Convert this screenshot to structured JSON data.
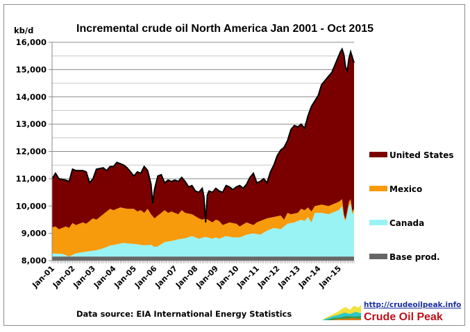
{
  "chart_data": {
    "type": "area",
    "stacked": true,
    "title": "Incremental crude oil North America  Jan 2001 - Oct 2015",
    "ylabel": "kb/d",
    "xlabel": "",
    "ylim": [
      8000,
      16000
    ],
    "yticks": [
      8000,
      9000,
      10000,
      11000,
      12000,
      13000,
      14000,
      15000,
      16000
    ],
    "ytick_labels": [
      "8,000",
      "9,000",
      "10,000",
      "11,000",
      "12,000",
      "13,000",
      "14,000",
      "15,000",
      "16,000"
    ],
    "x_start": "Jan 2001",
    "x_end": "Oct 2015",
    "xtick_labels": [
      "Jan-01",
      "Jan-02",
      "Jan-03",
      "Jan-04",
      "Jan-05",
      "Jan-06",
      "Jan-07",
      "Jan-08",
      "Jan-09",
      "Jan-10",
      "Jan-11",
      "Jan-12",
      "Jan-13",
      "Jan-14",
      "Jan-15"
    ],
    "grid": "horizontal",
    "legend_position": "right",
    "series_note": "values are cumulative stack tops in kb/d, one per month",
    "series": [
      {
        "name": "Base prod.",
        "color": "#666666",
        "keypoints": [
          [
            0,
            8150
          ],
          [
            177,
            8150
          ]
        ]
      },
      {
        "name": "Canada",
        "color": "#99f3f5",
        "keypoints": [
          [
            0,
            8260
          ],
          [
            6,
            8250
          ],
          [
            10,
            8150
          ],
          [
            14,
            8270
          ],
          [
            20,
            8330
          ],
          [
            26,
            8380
          ],
          [
            30,
            8450
          ],
          [
            34,
            8550
          ],
          [
            38,
            8600
          ],
          [
            42,
            8650
          ],
          [
            46,
            8620
          ],
          [
            50,
            8600
          ],
          [
            54,
            8560
          ],
          [
            58,
            8580
          ],
          [
            60,
            8500
          ],
          [
            62,
            8520
          ],
          [
            66,
            8680
          ],
          [
            70,
            8720
          ],
          [
            74,
            8780
          ],
          [
            78,
            8820
          ],
          [
            82,
            8900
          ],
          [
            86,
            8800
          ],
          [
            90,
            8870
          ],
          [
            94,
            8800
          ],
          [
            96,
            8850
          ],
          [
            98,
            8800
          ],
          [
            102,
            8900
          ],
          [
            106,
            8850
          ],
          [
            110,
            8850
          ],
          [
            114,
            8950
          ],
          [
            118,
            9000
          ],
          [
            122,
            8950
          ],
          [
            126,
            9100
          ],
          [
            130,
            9200
          ],
          [
            134,
            9150
          ],
          [
            138,
            9350
          ],
          [
            142,
            9400
          ],
          [
            146,
            9500
          ],
          [
            148,
            9450
          ],
          [
            150,
            9600
          ],
          [
            152,
            9400
          ],
          [
            154,
            9750
          ],
          [
            158,
            9750
          ],
          [
            162,
            9700
          ],
          [
            166,
            9800
          ],
          [
            168,
            9850
          ],
          [
            170,
            10000
          ],
          [
            171,
            9600
          ],
          [
            172,
            9450
          ],
          [
            174,
            10000
          ],
          [
            175,
            10100
          ],
          [
            176,
            9700
          ],
          [
            177,
            9800
          ]
        ]
      },
      {
        "name": "Mexico",
        "color": "#f79a0c",
        "keypoints": [
          [
            0,
            9220
          ],
          [
            2,
            9250
          ],
          [
            4,
            9150
          ],
          [
            8,
            9250
          ],
          [
            10,
            9200
          ],
          [
            12,
            9380
          ],
          [
            14,
            9300
          ],
          [
            18,
            9400
          ],
          [
            20,
            9350
          ],
          [
            24,
            9550
          ],
          [
            26,
            9500
          ],
          [
            30,
            9700
          ],
          [
            34,
            9900
          ],
          [
            36,
            9850
          ],
          [
            40,
            9950
          ],
          [
            44,
            9900
          ],
          [
            48,
            9900
          ],
          [
            50,
            9800
          ],
          [
            52,
            9850
          ],
          [
            54,
            9750
          ],
          [
            56,
            9900
          ],
          [
            58,
            9700
          ],
          [
            60,
            9550
          ],
          [
            62,
            9650
          ],
          [
            66,
            9850
          ],
          [
            68,
            9750
          ],
          [
            70,
            9800
          ],
          [
            74,
            9700
          ],
          [
            76,
            9850
          ],
          [
            78,
            9750
          ],
          [
            82,
            9700
          ],
          [
            86,
            9550
          ],
          [
            88,
            9500
          ],
          [
            90,
            9550
          ],
          [
            94,
            9400
          ],
          [
            96,
            9500
          ],
          [
            98,
            9450
          ],
          [
            100,
            9300
          ],
          [
            104,
            9400
          ],
          [
            108,
            9350
          ],
          [
            110,
            9250
          ],
          [
            114,
            9400
          ],
          [
            118,
            9300
          ],
          [
            120,
            9400
          ],
          [
            124,
            9500
          ],
          [
            126,
            9550
          ],
          [
            130,
            9600
          ],
          [
            134,
            9650
          ],
          [
            136,
            9500
          ],
          [
            138,
            9750
          ],
          [
            140,
            9700
          ],
          [
            144,
            9750
          ],
          [
            146,
            9900
          ],
          [
            148,
            9850
          ],
          [
            150,
            9950
          ],
          [
            152,
            9800
          ],
          [
            154,
            10000
          ],
          [
            158,
            10050
          ],
          [
            162,
            10000
          ],
          [
            166,
            10100
          ],
          [
            168,
            10150
          ],
          [
            170,
            10250
          ],
          [
            171,
            9700
          ],
          [
            172,
            9500
          ],
          [
            174,
            10150
          ],
          [
            175,
            10250
          ],
          [
            176,
            9800
          ],
          [
            177,
            9900
          ]
        ]
      },
      {
        "name": "United States",
        "color": "#7a0000",
        "keypoints": [
          [
            0,
            11000
          ],
          [
            2,
            11200
          ],
          [
            4,
            11000
          ],
          [
            8,
            10950
          ],
          [
            10,
            10900
          ],
          [
            12,
            11350
          ],
          [
            14,
            11300
          ],
          [
            18,
            11300
          ],
          [
            20,
            11250
          ],
          [
            22,
            10850
          ],
          [
            24,
            11000
          ],
          [
            26,
            11350
          ],
          [
            30,
            11400
          ],
          [
            32,
            11300
          ],
          [
            34,
            11450
          ],
          [
            36,
            11450
          ],
          [
            38,
            11600
          ],
          [
            40,
            11550
          ],
          [
            42,
            11500
          ],
          [
            44,
            11400
          ],
          [
            46,
            11250
          ],
          [
            48,
            11100
          ],
          [
            50,
            11250
          ],
          [
            52,
            11200
          ],
          [
            54,
            11450
          ],
          [
            56,
            11300
          ],
          [
            58,
            10800
          ],
          [
            59,
            10100
          ],
          [
            60,
            10600
          ],
          [
            62,
            11100
          ],
          [
            64,
            11150
          ],
          [
            66,
            10850
          ],
          [
            68,
            10950
          ],
          [
            70,
            10900
          ],
          [
            72,
            10950
          ],
          [
            74,
            10900
          ],
          [
            76,
            11050
          ],
          [
            78,
            10900
          ],
          [
            80,
            10700
          ],
          [
            82,
            10750
          ],
          [
            84,
            10550
          ],
          [
            86,
            10500
          ],
          [
            88,
            10650
          ],
          [
            89,
            10350
          ],
          [
            90,
            9400
          ],
          [
            91,
            10400
          ],
          [
            92,
            10550
          ],
          [
            94,
            10500
          ],
          [
            96,
            10650
          ],
          [
            98,
            10550
          ],
          [
            100,
            10500
          ],
          [
            102,
            10750
          ],
          [
            104,
            10700
          ],
          [
            106,
            10600
          ],
          [
            108,
            10700
          ],
          [
            110,
            10750
          ],
          [
            112,
            10650
          ],
          [
            114,
            10800
          ],
          [
            116,
            11050
          ],
          [
            118,
            11200
          ],
          [
            120,
            10850
          ],
          [
            122,
            10900
          ],
          [
            124,
            11000
          ],
          [
            126,
            10850
          ],
          [
            128,
            11250
          ],
          [
            130,
            11500
          ],
          [
            132,
            11850
          ],
          [
            134,
            12050
          ],
          [
            136,
            12150
          ],
          [
            138,
            12400
          ],
          [
            140,
            12800
          ],
          [
            142,
            12950
          ],
          [
            144,
            12900
          ],
          [
            146,
            13000
          ],
          [
            148,
            12850
          ],
          [
            150,
            13300
          ],
          [
            152,
            13650
          ],
          [
            154,
            13850
          ],
          [
            156,
            14050
          ],
          [
            158,
            14450
          ],
          [
            160,
            14600
          ],
          [
            162,
            14750
          ],
          [
            164,
            14900
          ],
          [
            166,
            15200
          ],
          [
            168,
            15500
          ],
          [
            169,
            15650
          ],
          [
            170,
            15750
          ],
          [
            171,
            15550
          ],
          [
            172,
            15100
          ],
          [
            173,
            14950
          ],
          [
            174,
            15400
          ],
          [
            175,
            15650
          ],
          [
            176,
            15450
          ],
          [
            177,
            15250
          ]
        ]
      }
    ]
  },
  "footer": {
    "source": "Data source: EIA International Energy Statistics",
    "link": "http://crudeoilpeak.info",
    "brand": "Crude Oil Peak"
  }
}
